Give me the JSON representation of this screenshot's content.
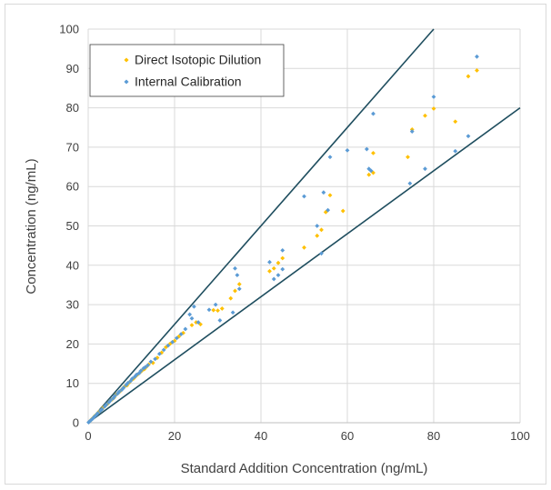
{
  "chart_data": {
    "type": "scatter",
    "title": "",
    "xlabel": "Standard Addition Concentration (ng/mL)",
    "ylabel": "Concentration (ng/mL)",
    "xlim": [
      0,
      100
    ],
    "ylim": [
      0,
      100
    ],
    "x_ticks": [
      0,
      20,
      40,
      60,
      80,
      100
    ],
    "y_ticks": [
      0,
      10,
      20,
      30,
      40,
      50,
      60,
      70,
      80,
      90,
      100
    ],
    "grid": true,
    "legend_position": "top-left",
    "reference_lines": [
      {
        "name": "",
        "slope": 1.25,
        "color": "#1f4e5f"
      },
      {
        "name": "",
        "slope": 0.8,
        "color": "#1f4e5f"
      }
    ],
    "series": [
      {
        "name": "Direct Isotopic Dilution",
        "color": "#ffc000",
        "points": [
          [
            0.2,
            0.2
          ],
          [
            0.5,
            0.5
          ],
          [
            0.8,
            0.9
          ],
          [
            1.2,
            1.3
          ],
          [
            1.5,
            1.7
          ],
          [
            2.0,
            2.2
          ],
          [
            2.5,
            2.8
          ],
          [
            3.0,
            3.2
          ],
          [
            3.5,
            3.9
          ],
          [
            4.0,
            4.3
          ],
          [
            4.5,
            4.8
          ],
          [
            5.0,
            5.5
          ],
          [
            5.5,
            5.9
          ],
          [
            6.0,
            6.4
          ],
          [
            6.5,
            7.2
          ],
          [
            7.0,
            7.6
          ],
          [
            7.5,
            8.1
          ],
          [
            8.0,
            8.7
          ],
          [
            8.5,
            9.3
          ],
          [
            9.0,
            9.5
          ],
          [
            9.5,
            10.2
          ],
          [
            10.0,
            10.8
          ],
          [
            10.5,
            11.2
          ],
          [
            11.0,
            11.8
          ],
          [
            11.5,
            12.3
          ],
          [
            12.0,
            12.8
          ],
          [
            12.5,
            13.3
          ],
          [
            13.0,
            13.6
          ],
          [
            13.5,
            14.2
          ],
          [
            14.0,
            14.8
          ],
          [
            15.0,
            15.2
          ],
          [
            16.0,
            16.5
          ],
          [
            17.0,
            17.8
          ],
          [
            18.0,
            19.2
          ],
          [
            19.0,
            20.1
          ],
          [
            20.0,
            20.8
          ],
          [
            21.0,
            21.9
          ],
          [
            22.0,
            22.8
          ],
          [
            24.0,
            24.8
          ],
          [
            25.0,
            25.5
          ],
          [
            26.0,
            25.0
          ],
          [
            29.0,
            28.6
          ],
          [
            30.0,
            28.5
          ],
          [
            31.0,
            29.0
          ],
          [
            33.0,
            31.6
          ],
          [
            34.0,
            33.5
          ],
          [
            35.0,
            35.2
          ],
          [
            42.0,
            38.5
          ],
          [
            43.0,
            39.2
          ],
          [
            44.0,
            40.6
          ],
          [
            45.0,
            41.8
          ],
          [
            50.0,
            44.5
          ],
          [
            53.0,
            47.5
          ],
          [
            54.0,
            49.0
          ],
          [
            55.0,
            53.5
          ],
          [
            56.0,
            57.8
          ],
          [
            59.0,
            53.8
          ],
          [
            65.0,
            63.0
          ],
          [
            66.0,
            63.5
          ],
          [
            66.0,
            68.5
          ],
          [
            74.0,
            67.5
          ],
          [
            75.0,
            74.5
          ],
          [
            78.0,
            78.0
          ],
          [
            80.0,
            79.8
          ],
          [
            85.0,
            76.5
          ],
          [
            88.0,
            88.0
          ],
          [
            90.0,
            89.5
          ]
        ]
      },
      {
        "name": "Internal Calibration",
        "color": "#5b9bd5",
        "points": [
          [
            0.1,
            0.1
          ],
          [
            0.3,
            0.3
          ],
          [
            0.6,
            0.6
          ],
          [
            1.0,
            1.0
          ],
          [
            1.4,
            1.5
          ],
          [
            1.8,
            1.9
          ],
          [
            2.2,
            2.4
          ],
          [
            2.8,
            3.0
          ],
          [
            3.2,
            3.4
          ],
          [
            3.8,
            4.1
          ],
          [
            4.2,
            4.6
          ],
          [
            4.8,
            5.2
          ],
          [
            5.2,
            5.7
          ],
          [
            5.8,
            6.2
          ],
          [
            6.2,
            6.8
          ],
          [
            6.8,
            7.4
          ],
          [
            7.2,
            7.9
          ],
          [
            7.8,
            8.4
          ],
          [
            8.2,
            8.9
          ],
          [
            8.8,
            9.6
          ],
          [
            9.2,
            10.1
          ],
          [
            9.8,
            10.6
          ],
          [
            10.2,
            11.2
          ],
          [
            10.8,
            11.7
          ],
          [
            11.2,
            12.2
          ],
          [
            11.8,
            12.6
          ],
          [
            12.2,
            13.2
          ],
          [
            12.8,
            13.8
          ],
          [
            13.2,
            14.1
          ],
          [
            13.8,
            14.6
          ],
          [
            14.5,
            15.5
          ],
          [
            15.5,
            16.2
          ],
          [
            16.5,
            17.5
          ],
          [
            17.5,
            18.5
          ],
          [
            18.5,
            19.6
          ],
          [
            19.5,
            20.5
          ],
          [
            20.5,
            21.5
          ],
          [
            21.5,
            22.5
          ],
          [
            22.5,
            23.8
          ],
          [
            23.5,
            27.5
          ],
          [
            24.0,
            26.5
          ],
          [
            24.5,
            29.5
          ],
          [
            25.5,
            25.5
          ],
          [
            28.0,
            28.7
          ],
          [
            29.5,
            30.0
          ],
          [
            30.5,
            26.0
          ],
          [
            33.5,
            28.0
          ],
          [
            34.0,
            39.2
          ],
          [
            34.5,
            37.5
          ],
          [
            35.0,
            34.0
          ],
          [
            42.0,
            40.8
          ],
          [
            43.0,
            36.5
          ],
          [
            44.0,
            37.5
          ],
          [
            45.0,
            39.0
          ],
          [
            45.0,
            43.8
          ],
          [
            50.0,
            57.5
          ],
          [
            53.0,
            50.0
          ],
          [
            54.0,
            43.0
          ],
          [
            54.5,
            58.5
          ],
          [
            55.5,
            54.0
          ],
          [
            56.0,
            67.5
          ],
          [
            60.0,
            69.2
          ],
          [
            64.5,
            69.5
          ],
          [
            65.0,
            64.5
          ],
          [
            65.5,
            64.0
          ],
          [
            66.0,
            78.5
          ],
          [
            74.5,
            60.8
          ],
          [
            75.0,
            74.0
          ],
          [
            78.0,
            64.5
          ],
          [
            80.0,
            82.8
          ],
          [
            85.0,
            69.0
          ],
          [
            88.0,
            72.8
          ],
          [
            90.0,
            93.0
          ]
        ]
      }
    ]
  }
}
